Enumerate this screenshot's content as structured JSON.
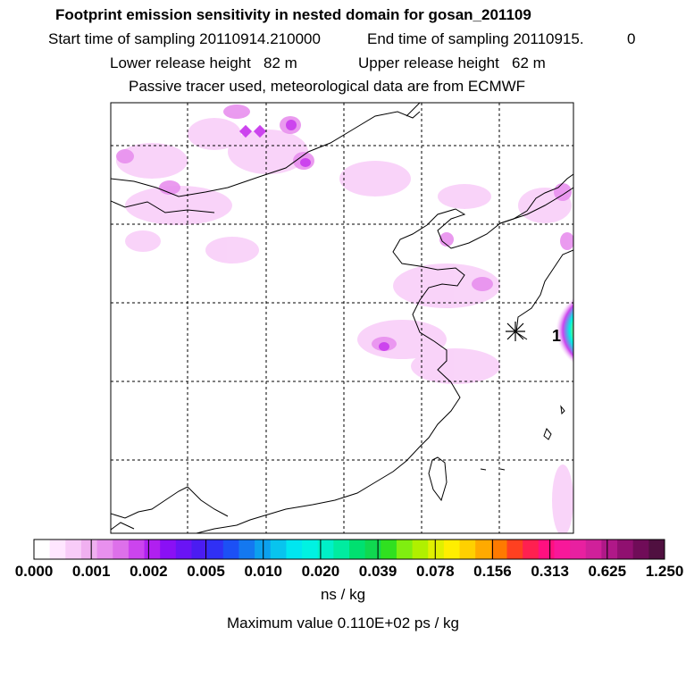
{
  "header": {
    "title": "Footprint emission sensitivity in nested domain for gosan_201109",
    "start_time": "Start time of sampling 20110914.210000",
    "end_time": "End time of sampling 20110915.",
    "end_time_suffix": "0",
    "lower_release": "Lower release height   82 m",
    "upper_release": "Upper release height   62 m",
    "tracer_note": "Passive tracer used, meteorological data are from ECMWF"
  },
  "map": {
    "station_label": "1",
    "colors": {
      "frame": "#000000",
      "coast": "#000000",
      "grid": "#000000"
    }
  },
  "colorbar": {
    "tick_labels": [
      "0.000",
      "0.001",
      "0.002",
      "0.005",
      "0.010",
      "0.020",
      "0.039",
      "0.078",
      "0.156",
      "0.313",
      "0.625",
      "1.250"
    ],
    "units": "ns / kg",
    "max_value": "Maximum value  0.110E+02 ps / kg",
    "colors": [
      "#ffffff",
      "#ffe6ff",
      "#f8ccf8",
      "#f0b0f0",
      "#e890ee",
      "#dd70ea",
      "#cc44ee",
      "#b020f0",
      "#8a10f5",
      "#6a14f5",
      "#4b1cf2",
      "#3030f5",
      "#1c50f5",
      "#1478f0",
      "#0ca0ee",
      "#08c4ee",
      "#00e6f0",
      "#00f2e2",
      "#00f0c8",
      "#00eca0",
      "#00e070",
      "#10d850",
      "#30e020",
      "#80ee10",
      "#b0f000",
      "#e0f000",
      "#ffee00",
      "#ffd000",
      "#ffaa00",
      "#ff7a00",
      "#ff4020",
      "#ff2050",
      "#ff1080",
      "#f8189a",
      "#e820a0",
      "#d0209a",
      "#b01888",
      "#901070",
      "#700c58",
      "#501040"
    ]
  }
}
